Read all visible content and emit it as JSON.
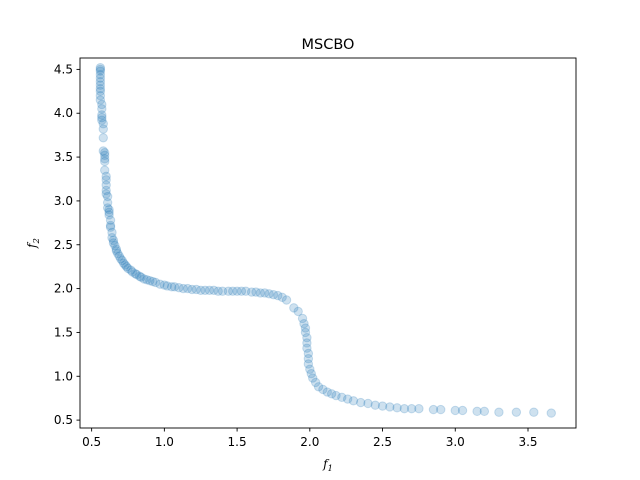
{
  "chart_data": {
    "type": "scatter",
    "title": "MSCBO",
    "xlabel": {
      "base": "f",
      "sub": "1"
    },
    "ylabel": {
      "base": "f",
      "sub": "2"
    },
    "xlim": [
      0.42,
      3.83
    ],
    "ylim": [
      0.41,
      4.63
    ],
    "xticks": [
      "0.5",
      "1.0",
      "1.5",
      "2.0",
      "2.5",
      "3.0",
      "3.5"
    ],
    "yticks": [
      "0.5",
      "1.0",
      "1.5",
      "2.0",
      "2.5",
      "3.0",
      "3.5",
      "4.0",
      "4.5"
    ],
    "grid": false,
    "marker_color": "#1f77b4",
    "marker_alpha": 0.22,
    "points": [
      [
        0.56,
        4.52
      ],
      [
        0.56,
        4.5
      ],
      [
        0.56,
        4.48
      ],
      [
        0.56,
        4.44
      ],
      [
        0.56,
        4.4
      ],
      [
        0.56,
        4.36
      ],
      [
        0.56,
        4.32
      ],
      [
        0.56,
        4.28
      ],
      [
        0.56,
        4.25
      ],
      [
        0.56,
        4.2
      ],
      [
        0.56,
        4.15
      ],
      [
        0.57,
        4.1
      ],
      [
        0.57,
        4.05
      ],
      [
        0.57,
        3.98
      ],
      [
        0.57,
        3.95
      ],
      [
        0.57,
        3.92
      ],
      [
        0.58,
        3.88
      ],
      [
        0.58,
        3.82
      ],
      [
        0.58,
        3.72
      ],
      [
        0.58,
        3.57
      ],
      [
        0.59,
        3.55
      ],
      [
        0.59,
        3.52
      ],
      [
        0.59,
        3.48
      ],
      [
        0.59,
        3.45
      ],
      [
        0.59,
        3.35
      ],
      [
        0.6,
        3.28
      ],
      [
        0.6,
        3.24
      ],
      [
        0.6,
        3.18
      ],
      [
        0.6,
        3.12
      ],
      [
        0.6,
        3.08
      ],
      [
        0.61,
        3.05
      ],
      [
        0.61,
        2.98
      ],
      [
        0.61,
        2.92
      ],
      [
        0.62,
        2.9
      ],
      [
        0.62,
        2.87
      ],
      [
        0.62,
        2.84
      ],
      [
        0.63,
        2.78
      ],
      [
        0.63,
        2.72
      ],
      [
        0.63,
        2.7
      ],
      [
        0.64,
        2.64
      ],
      [
        0.64,
        2.58
      ],
      [
        0.65,
        2.55
      ],
      [
        0.65,
        2.52
      ],
      [
        0.66,
        2.49
      ],
      [
        0.67,
        2.45
      ],
      [
        0.67,
        2.43
      ],
      [
        0.68,
        2.4
      ],
      [
        0.69,
        2.37
      ],
      [
        0.7,
        2.34
      ],
      [
        0.71,
        2.32
      ],
      [
        0.72,
        2.29
      ],
      [
        0.73,
        2.27
      ],
      [
        0.74,
        2.25
      ],
      [
        0.75,
        2.23
      ],
      [
        0.77,
        2.21
      ],
      [
        0.78,
        2.19
      ],
      [
        0.8,
        2.17
      ],
      [
        0.81,
        2.16
      ],
      [
        0.83,
        2.14
      ],
      [
        0.84,
        2.13
      ],
      [
        0.86,
        2.11
      ],
      [
        0.88,
        2.1
      ],
      [
        0.9,
        2.09
      ],
      [
        0.92,
        2.08
      ],
      [
        0.94,
        2.07
      ],
      [
        0.97,
        2.05
      ],
      [
        1.0,
        2.04
      ],
      [
        1.02,
        2.03
      ],
      [
        1.05,
        2.02
      ],
      [
        1.07,
        2.02
      ],
      [
        1.1,
        2.01
      ],
      [
        1.13,
        2.0
      ],
      [
        1.16,
        2.0
      ],
      [
        1.19,
        1.99
      ],
      [
        1.22,
        1.99
      ],
      [
        1.25,
        1.98
      ],
      [
        1.28,
        1.98
      ],
      [
        1.31,
        1.98
      ],
      [
        1.34,
        1.98
      ],
      [
        1.37,
        1.97
      ],
      [
        1.4,
        1.97
      ],
      [
        1.44,
        1.97
      ],
      [
        1.47,
        1.97
      ],
      [
        1.5,
        1.97
      ],
      [
        1.53,
        1.97
      ],
      [
        1.56,
        1.97
      ],
      [
        1.6,
        1.96
      ],
      [
        1.63,
        1.96
      ],
      [
        1.66,
        1.95
      ],
      [
        1.69,
        1.95
      ],
      [
        1.72,
        1.94
      ],
      [
        1.75,
        1.93
      ],
      [
        1.78,
        1.92
      ],
      [
        1.81,
        1.9
      ],
      [
        1.84,
        1.87
      ],
      [
        1.89,
        1.78
      ],
      [
        1.92,
        1.74
      ],
      [
        1.95,
        1.66
      ],
      [
        1.96,
        1.6
      ],
      [
        1.97,
        1.55
      ],
      [
        1.97,
        1.5
      ],
      [
        1.98,
        1.44
      ],
      [
        1.98,
        1.38
      ],
      [
        1.98,
        1.32
      ],
      [
        1.99,
        1.26
      ],
      [
        1.99,
        1.2
      ],
      [
        1.99,
        1.14
      ],
      [
        2.0,
        1.08
      ],
      [
        2.01,
        1.03
      ],
      [
        2.02,
        0.98
      ],
      [
        2.04,
        0.93
      ],
      [
        2.06,
        0.88
      ],
      [
        2.09,
        0.85
      ],
      [
        2.12,
        0.82
      ],
      [
        2.15,
        0.8
      ],
      [
        2.18,
        0.78
      ],
      [
        2.22,
        0.76
      ],
      [
        2.26,
        0.74
      ],
      [
        2.3,
        0.72
      ],
      [
        2.35,
        0.7
      ],
      [
        2.4,
        0.69
      ],
      [
        2.45,
        0.67
      ],
      [
        2.5,
        0.66
      ],
      [
        2.55,
        0.65
      ],
      [
        2.6,
        0.64
      ],
      [
        2.65,
        0.63
      ],
      [
        2.7,
        0.63
      ],
      [
        2.75,
        0.63
      ],
      [
        2.85,
        0.62
      ],
      [
        2.9,
        0.62
      ],
      [
        3.0,
        0.61
      ],
      [
        3.05,
        0.61
      ],
      [
        3.15,
        0.6
      ],
      [
        3.2,
        0.6
      ],
      [
        3.3,
        0.59
      ],
      [
        3.42,
        0.59
      ],
      [
        3.54,
        0.59
      ],
      [
        3.66,
        0.58
      ]
    ]
  }
}
